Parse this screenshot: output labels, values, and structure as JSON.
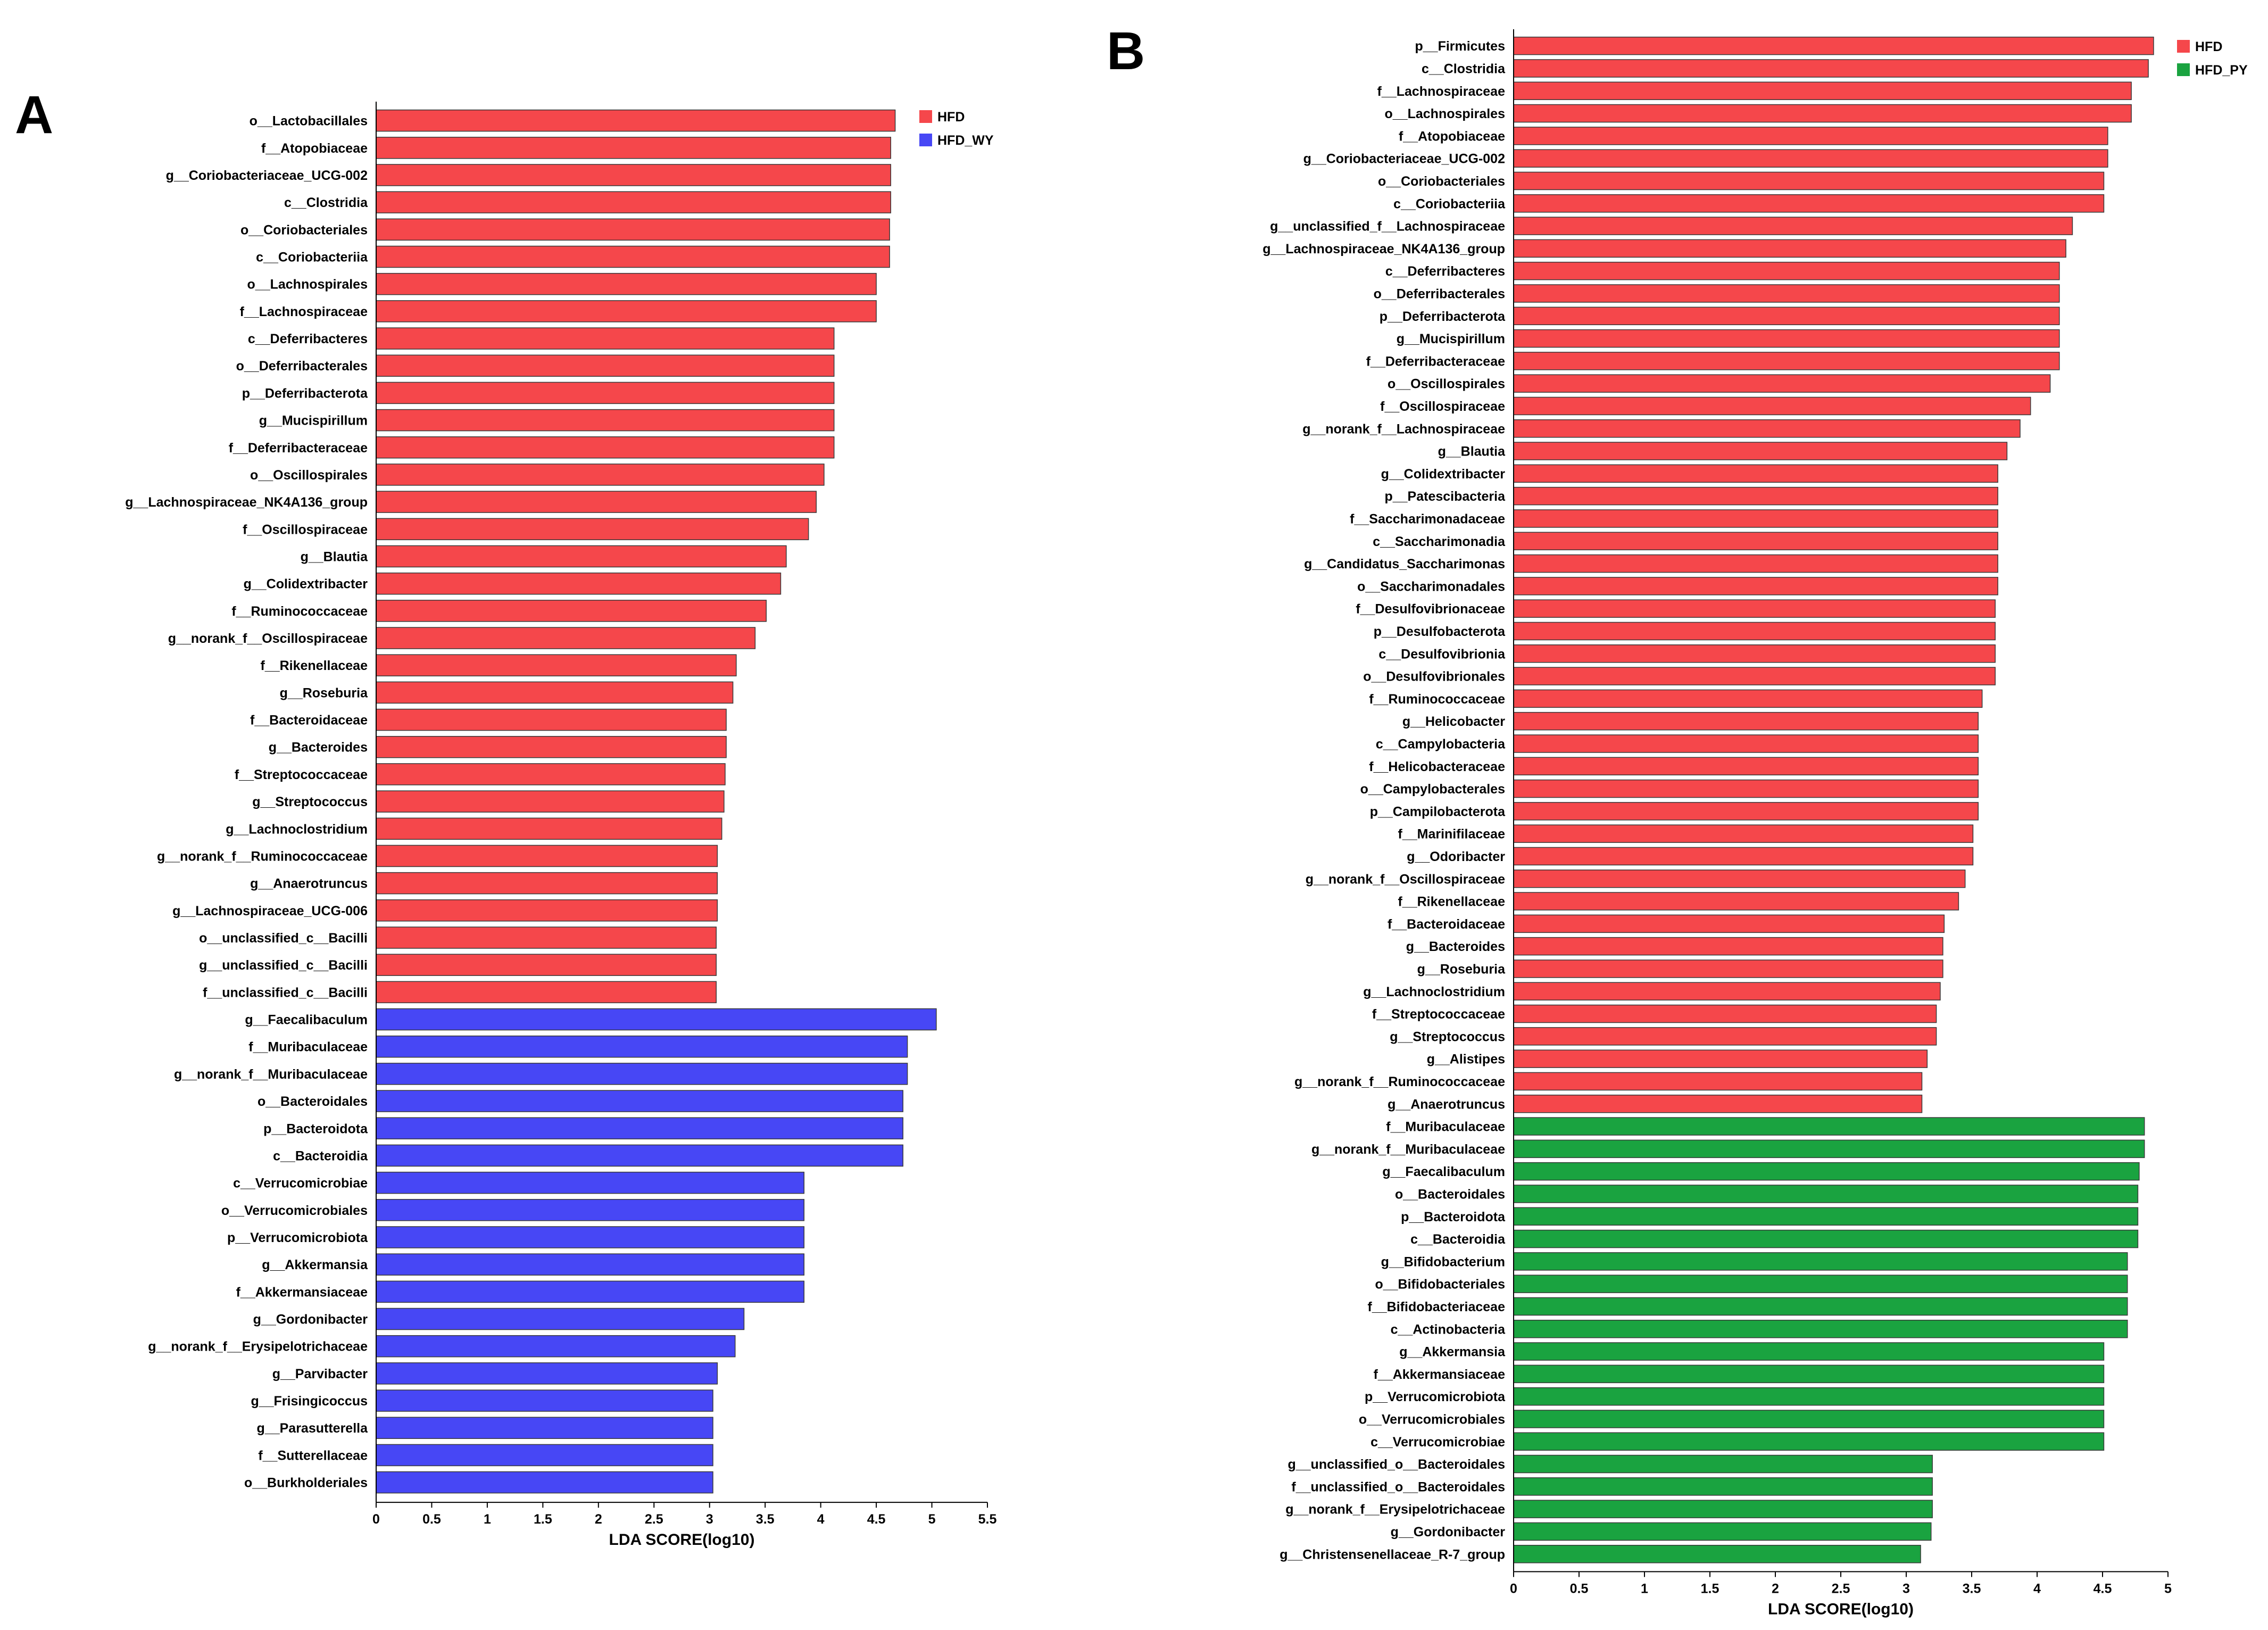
{
  "figure": {
    "panel_labels": [
      "A",
      "B"
    ]
  },
  "chart_data": [
    {
      "type": "bar",
      "orientation": "horizontal",
      "xlabel": "LDA SCORE(log10)",
      "xlim": [
        0,
        5.5
      ],
      "xticks": [
        "0",
        "0.5",
        "1",
        "1.5",
        "2",
        "2.5",
        "3",
        "3.5",
        "4",
        "4.5",
        "5",
        "5.5"
      ],
      "legend_position": "top-right",
      "series": [
        {
          "name": "HFD",
          "color": "#f5474b",
          "categories": [
            "o__Lactobacillales",
            "f__Atopobiaceae",
            "g__Coriobacteriaceae_UCG-002",
            "c__Clostridia",
            "o__Coriobacteriales",
            "c__Coriobacteriia",
            "o__Lachnospirales",
            "f__Lachnospiraceae",
            "c__Deferribacteres",
            "o__Deferribacterales",
            "p__Deferribacterota",
            "g__Mucispirillum",
            "f__Deferribacteraceae",
            "o__Oscillospirales",
            "g__Lachnospiraceae_NK4A136_group",
            "f__Oscillospiraceae",
            "g__Blautia",
            "g__Colidextribacter",
            "f__Ruminococcaceae",
            "g__norank_f__Oscillospiraceae",
            "f__Rikenellaceae",
            "g__Roseburia",
            "f__Bacteroidaceae",
            "g__Bacteroides",
            "f__Streptococcaceae",
            "g__Streptococcus",
            "g__Lachnoclostridium",
            "g__norank_f__Ruminococcaceae",
            "g__Anaerotruncus",
            "g__Lachnospiraceae_UCG-006",
            "o__unclassified_c__Bacilli",
            "g__unclassified_c__Bacilli",
            "f__unclassified_c__Bacilli"
          ],
          "values": [
            4.67,
            4.63,
            4.63,
            4.63,
            4.62,
            4.62,
            4.5,
            4.5,
            4.12,
            4.12,
            4.12,
            4.12,
            4.12,
            4.03,
            3.96,
            3.89,
            3.69,
            3.64,
            3.51,
            3.41,
            3.24,
            3.21,
            3.15,
            3.15,
            3.14,
            3.13,
            3.11,
            3.07,
            3.07,
            3.07,
            3.06,
            3.06,
            3.06
          ]
        },
        {
          "name": "HFD_WY",
          "color": "#4747f5",
          "categories": [
            "g__Faecalibaculum",
            "f__Muribaculaceae",
            "g__norank_f__Muribaculaceae",
            "o__Bacteroidales",
            "p__Bacteroidota",
            "c__Bacteroidia",
            "c__Verrucomicrobiae",
            "o__Verrucomicrobiales",
            "p__Verrucomicrobiota",
            "g__Akkermansia",
            "f__Akkermansiaceae",
            "g__Gordonibacter",
            "g__norank_f__Erysipelotrichaceae",
            "g__Parvibacter",
            "g__Frisingicoccus",
            "g__Parasutterella",
            "f__Sutterellaceae",
            "o__Burkholderiales"
          ],
          "values": [
            5.04,
            4.78,
            4.78,
            4.74,
            4.74,
            4.74,
            3.85,
            3.85,
            3.85,
            3.85,
            3.85,
            3.31,
            3.23,
            3.07,
            3.03,
            3.03,
            3.03,
            3.03
          ]
        }
      ]
    },
    {
      "type": "bar",
      "orientation": "horizontal",
      "xlabel": "LDA SCORE(log10)",
      "xlim": [
        0,
        5
      ],
      "xticks": [
        "0",
        "0.5",
        "1",
        "1.5",
        "2",
        "2.5",
        "3",
        "3.5",
        "4",
        "4.5",
        "5"
      ],
      "legend_position": "top-right",
      "series": [
        {
          "name": "HFD",
          "color": "#f5474b",
          "categories": [
            "p__Firmicutes",
            "c__Clostridia",
            "f__Lachnospiraceae",
            "o__Lachnospirales",
            "f__Atopobiaceae",
            "g__Coriobacteriaceae_UCG-002",
            "o__Coriobacteriales",
            "c__Coriobacteriia",
            "g__unclassified_f__Lachnospiraceae",
            "g__Lachnospiraceae_NK4A136_group",
            "c__Deferribacteres",
            "o__Deferribacterales",
            "p__Deferribacterota",
            "g__Mucispirillum",
            "f__Deferribacteraceae",
            "o__Oscillospirales",
            "f__Oscillospiraceae",
            "g__norank_f__Lachnospiraceae",
            "g__Blautia",
            "g__Colidextribacter",
            "p__Patescibacteria",
            "f__Saccharimonadaceae",
            "c__Saccharimonadia",
            "g__Candidatus_Saccharimonas",
            "o__Saccharimonadales",
            "f__Desulfovibrionaceae",
            "p__Desulfobacterota",
            "c__Desulfovibrionia",
            "o__Desulfovibrionales",
            "f__Ruminococcaceae",
            "g__Helicobacter",
            "c__Campylobacteria",
            "f__Helicobacteraceae",
            "o__Campylobacterales",
            "p__Campilobacterota",
            "f__Marinifilaceae",
            "g__Odoribacter",
            "g__norank_f__Oscillospiraceae",
            "f__Rikenellaceae",
            "f__Bacteroidaceae",
            "g__Bacteroides",
            "g__Roseburia",
            "g__Lachnoclostridium",
            "f__Streptococcaceae",
            "g__Streptococcus",
            "g__Alistipes",
            "g__norank_f__Ruminococcaceae",
            "g__Anaerotruncus"
          ],
          "values": [
            4.89,
            4.85,
            4.72,
            4.72,
            4.54,
            4.54,
            4.51,
            4.51,
            4.27,
            4.22,
            4.17,
            4.17,
            4.17,
            4.17,
            4.17,
            4.1,
            3.95,
            3.87,
            3.77,
            3.7,
            3.7,
            3.7,
            3.7,
            3.7,
            3.7,
            3.68,
            3.68,
            3.68,
            3.68,
            3.58,
            3.55,
            3.55,
            3.55,
            3.55,
            3.55,
            3.51,
            3.51,
            3.45,
            3.4,
            3.29,
            3.28,
            3.28,
            3.26,
            3.23,
            3.23,
            3.16,
            3.12,
            3.12
          ]
        },
        {
          "name": "HFD_PY",
          "color": "#1aa340",
          "categories": [
            "f__Muribaculaceae",
            "g__norank_f__Muribaculaceae",
            "g__Faecalibaculum",
            "o__Bacteroidales",
            "p__Bacteroidota",
            "c__Bacteroidia",
            "g__Bifidobacterium",
            "o__Bifidobacteriales",
            "f__Bifidobacteriaceae",
            "c__Actinobacteria",
            "g__Akkermansia",
            "f__Akkermansiaceae",
            "p__Verrucomicrobiota",
            "o__Verrucomicrobiales",
            "c__Verrucomicrobiae",
            "g__unclassified_o__Bacteroidales",
            "f__unclassified_o__Bacteroidales",
            "g__norank_f__Erysipelotrichaceae",
            "g__Gordonibacter",
            "g__Christensenellaceae_R-7_group"
          ],
          "values": [
            4.82,
            4.82,
            4.78,
            4.77,
            4.77,
            4.77,
            4.69,
            4.69,
            4.69,
            4.69,
            4.51,
            4.51,
            4.51,
            4.51,
            4.51,
            3.2,
            3.2,
            3.2,
            3.19,
            3.11
          ]
        }
      ]
    }
  ]
}
